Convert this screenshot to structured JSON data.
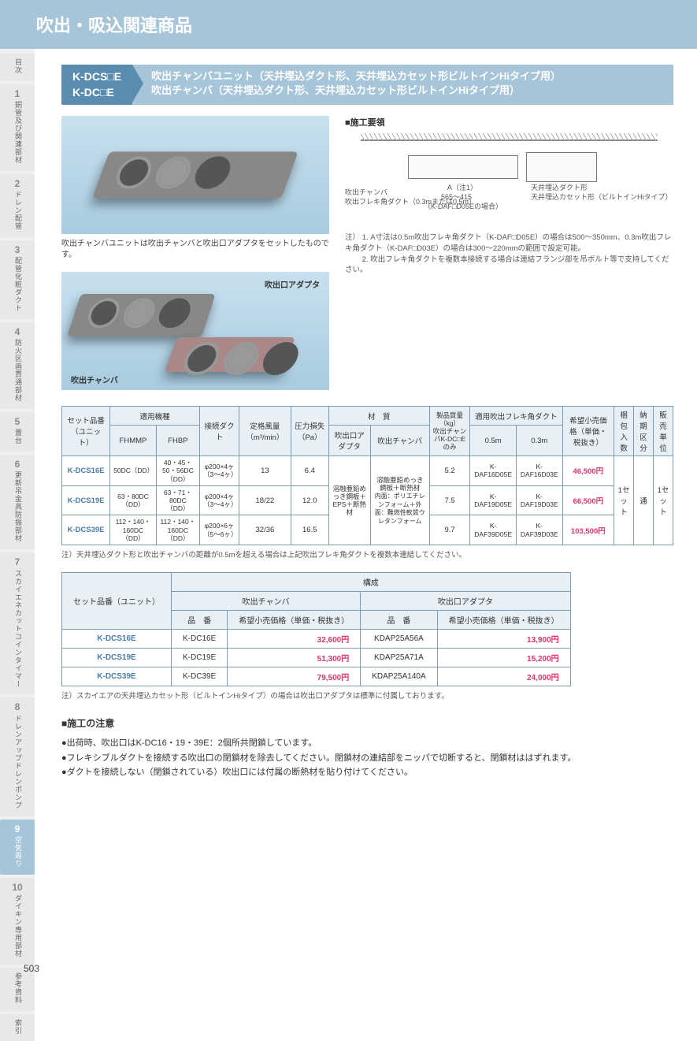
{
  "header": {
    "title": "吹出・吸込関連商品"
  },
  "sideNav": [
    {
      "num": "",
      "label": "目次"
    },
    {
      "num": "1",
      "label": "銅管及び関連部材"
    },
    {
      "num": "2",
      "label": "ドレン配管"
    },
    {
      "num": "3",
      "label": "配管化粧ダクト"
    },
    {
      "num": "4",
      "label": "防火区画貫通部材"
    },
    {
      "num": "5",
      "label": "置台"
    },
    {
      "num": "6",
      "label": "更新吊金具防振部材"
    },
    {
      "num": "7",
      "label": "スカイエネカットコインタイマー"
    },
    {
      "num": "8",
      "label": "ドレンアップドレンポンプ"
    },
    {
      "num": "9",
      "label": "空気周り"
    },
    {
      "num": "10",
      "label": "ダイキン専用部材"
    },
    {
      "num": "",
      "label": "参考資料"
    },
    {
      "num": "",
      "label": "索引"
    }
  ],
  "activeSide": 9,
  "titleBlock": {
    "code1": "K-DCS□E",
    "code2": "K-DC□E",
    "desc1": "吹出チャンバユニット（天井埋込ダクト形、天井埋込カセット形ビルトインHiタイプ用）",
    "desc2": "吹出チャンバ（天井埋込ダクト形、天井埋込カセット形ビルトインHiタイプ用）"
  },
  "photo1cap": "吹出チャンバユニットは吹出チャンバと吹出口アダプタをセットしたものです。",
  "photo2": {
    "label_tr": "吹出口アダプタ",
    "label_bl": "吹出チャンバ"
  },
  "install": {
    "heading": "■施工要領",
    "d_labels": {
      "cham": "吹出チャンバ",
      "flex": "吹出フレキ角ダクト（0.3mまたは0.5m）",
      "dim": "A（注1）",
      "range": "565～415",
      "sub": "（K-DAF□D05Eの場合）",
      "right1": "天井埋込ダクト形",
      "right2": "天井埋込カセット形（ビルトインHiタイプ）"
    },
    "notes_label": "注）",
    "note1": "1. A寸法は0.5m吹出フレキ角ダクト（K-DAF□D05E）の場合は500～350mm、0.3m吹出フレキ角ダクト（K-DAF□D03E）の場合は300～220mmの範囲で設定可能。",
    "note2": "2. 吹出フレキ角ダクトを複数本接続する場合は連結フランジ部を吊ボルト等で支持してください。"
  },
  "table1": {
    "headers": {
      "set": "セット品番（ユニット）",
      "model": "適用機種",
      "fhmmp": "FHMMP",
      "fhbp": "FHBP",
      "duct": "接続ダクト",
      "air": "定格風量（m³/min）",
      "loss": "圧力損失（Pa）",
      "mat": "材　質",
      "mat_ad": "吹出口アダプタ",
      "mat_ch": "吹出チャンバ",
      "mass": "製品質量（kg）",
      "mass_sub": "吹出チャンバK-DC□Eのみ",
      "flex": "適用吹出フレキ角ダクト",
      "f05": "0.5m",
      "f03": "0.3m",
      "price": "希望小売価格（単価・税抜き）",
      "pack": "梱包入数",
      "lead": "納期区分",
      "unit": "販売単位"
    },
    "mat_ad_val": "溶融亜鉛めっき鋼板＋EPS＋断熱材",
    "mat_ch_val1": "溶融亜鉛めっき鋼板＋断熱材",
    "mat_ch_val2": "内面：ポリエチレンフォーム＋外面：難燃性軟質ウレタンフォーム",
    "pack_val": "1セット",
    "lead_val": "通",
    "unit_val": "1セット",
    "rows": [
      {
        "code": "K-DCS16E",
        "fhmmp": "50DC（DD）",
        "fhbp": "40・45・50・56DC（DD）",
        "duct": "φ200×4ヶ（3～4ヶ）",
        "air": "13",
        "loss": "6.4",
        "mass": "5.2",
        "f05": "K-DAF16D05E",
        "f03": "K-DAF16D03E",
        "price": "46,500円"
      },
      {
        "code": "K-DCS19E",
        "fhmmp": "63・80DC（DD）",
        "fhbp": "63・71・80DC（DD）",
        "duct": "φ200×4ヶ（3～4ヶ）",
        "air": "18/22",
        "loss": "12.0",
        "mass": "7.5",
        "f05": "K-DAF19D05E",
        "f03": "K-DAF19D03E",
        "price": "66,500円"
      },
      {
        "code": "K-DCS39E",
        "fhmmp": "112・140・160DC（DD）",
        "fhbp": "112・140・160DC（DD）",
        "duct": "φ200×6ヶ（5～6ヶ）",
        "air": "32/36",
        "loss": "16.5",
        "mass": "9.7",
        "f05": "K-DAF39D05E",
        "f03": "K-DAF39D03E",
        "price": "103,500円"
      }
    ],
    "foot": "注）天井埋込ダクト形と吹出チャンバの距離が0.5mを超える場合は上記吹出フレキ角ダクトを複数本連結してください。"
  },
  "table2": {
    "headers": {
      "set": "セット品番（ユニット）",
      "comp": "構成",
      "cham": "吹出チャンバ",
      "ad": "吹出口アダプタ",
      "part": "品　番",
      "price": "希望小売価格（単価・税抜き）"
    },
    "rows": [
      {
        "set": "K-DCS16E",
        "ch": "K-DC16E",
        "chp": "32,600円",
        "ad": "KDAP25A56A",
        "adp": "13,900円"
      },
      {
        "set": "K-DCS19E",
        "ch": "K-DC19E",
        "chp": "51,300円",
        "ad": "KDAP25A71A",
        "adp": "15,200円"
      },
      {
        "set": "K-DCS39E",
        "ch": "K-DC39E",
        "chp": "79,500円",
        "ad": "KDAP25A140A",
        "adp": "24,000円"
      }
    ],
    "foot": "注）スカイエアの天井埋込カセット形（ビルトインHiタイプ）の場合は吹出口アダプタは標準に付属しております。"
  },
  "caution": {
    "heading": "■施工の注意",
    "items": [
      "●出荷時、吹出口はK-DC16・19・39E：2個所共閉鎖しています。",
      "●フレキシブルダクトを接続する吹出口の閉鎖材を除去してください。閉鎖材の連結部をニッパで切断すると、閉鎖材ははずれます。",
      "●ダクトを接続しない（閉鎖されている）吹出口には付属の断熱材を貼り付けてください。"
    ]
  },
  "pageNum": "503"
}
